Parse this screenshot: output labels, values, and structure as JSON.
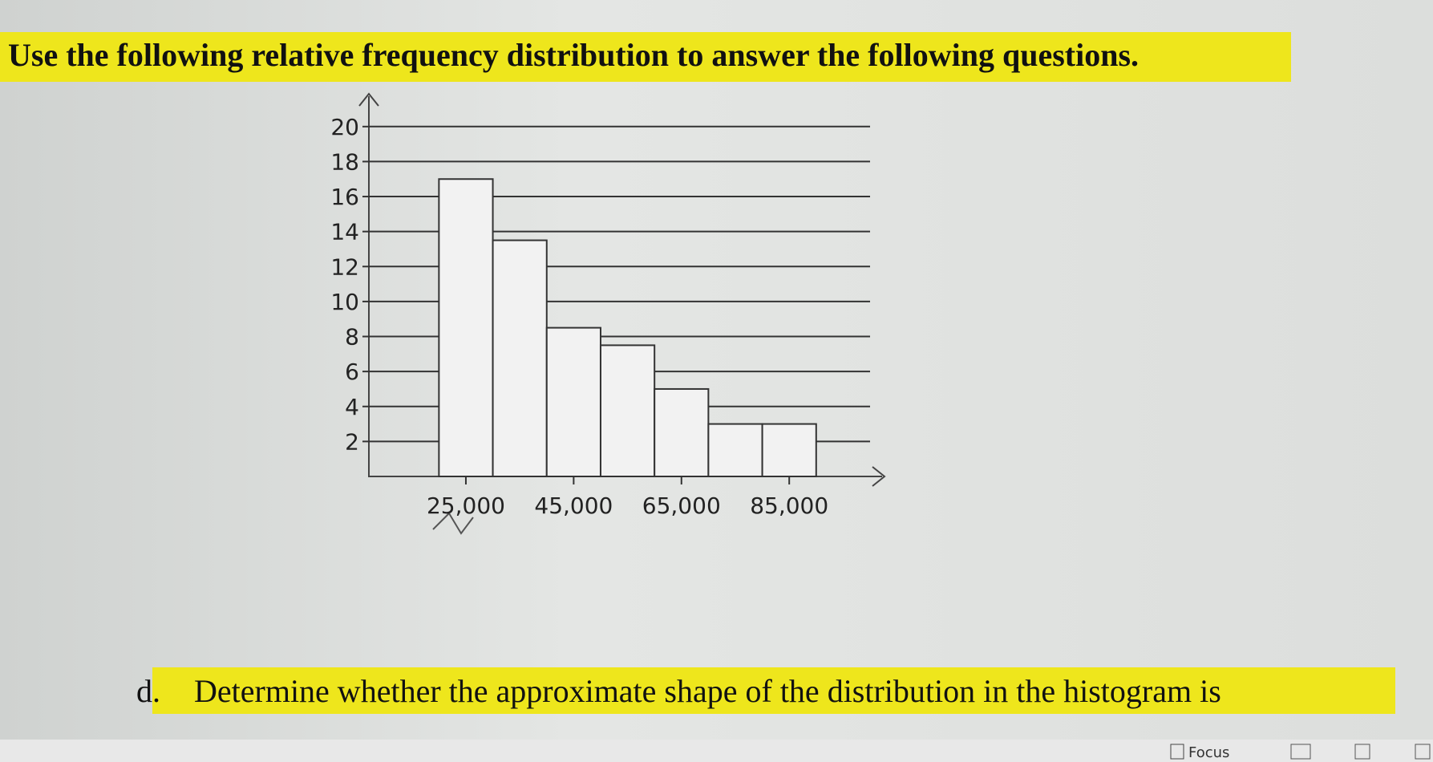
{
  "heading": "Use the following relative frequency distribution to answer the following questions.",
  "chart_data": {
    "type": "histogram",
    "bins": [
      20000,
      30000,
      40000,
      50000,
      60000,
      70000,
      80000,
      90000
    ],
    "values": [
      17,
      13.5,
      8.5,
      7.5,
      5,
      3,
      3
    ],
    "color": "#f2f2f2",
    "xlim": [
      7000,
      100000
    ],
    "xticks": [
      {
        "value": 25000,
        "label": "25,000"
      },
      {
        "value": 45000,
        "label": "45,000"
      },
      {
        "value": 65000,
        "label": "65,000"
      },
      {
        "value": 85000,
        "label": "85,000"
      }
    ],
    "ylim": [
      0,
      21
    ],
    "yticks": [
      2,
      4,
      6,
      8,
      10,
      12,
      14,
      16,
      18,
      20
    ],
    "grid": true
  },
  "question": {
    "marker": "d.",
    "text": "Determine whether the approximate shape of the distribution in the histogram is"
  },
  "status_bar": {
    "focus": "Focus"
  }
}
